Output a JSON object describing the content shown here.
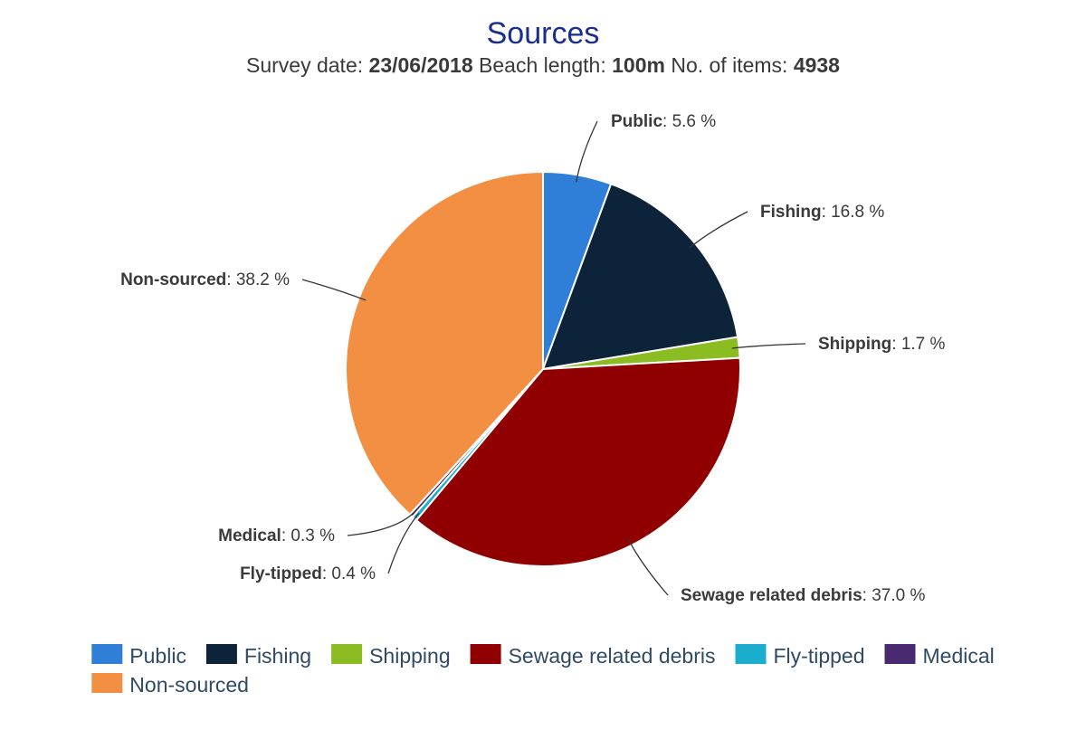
{
  "chart_data": {
    "type": "pie",
    "title": "Sources",
    "subtitle": {
      "survey_date_label": "Survey date: ",
      "survey_date": "23/06/2018",
      "beach_length_label": " Beach length: ",
      "beach_length": "100m",
      "items_label": " No. of items: ",
      "items": "4938"
    },
    "slices": [
      {
        "name": "Public",
        "value": 5.6,
        "label": "5.6 %",
        "color": "#2f7ed8"
      },
      {
        "name": "Fishing",
        "value": 16.8,
        "label": "16.8 %",
        "color": "#0d233a"
      },
      {
        "name": "Shipping",
        "value": 1.7,
        "label": "1.7 %",
        "color": "#8bbc21"
      },
      {
        "name": "Sewage related debris",
        "value": 37.0,
        "label": "37.0 %",
        "color": "#910000"
      },
      {
        "name": "Fly-tipped",
        "value": 0.4,
        "label": "0.4 %",
        "color": "#1aadce"
      },
      {
        "name": "Medical",
        "value": 0.3,
        "label": "0.3 %",
        "color": "#492970"
      },
      {
        "name": "Non-sourced",
        "value": 38.2,
        "label": "38.2 %",
        "color": "#f28f43"
      }
    ],
    "legend_position": "bottom"
  }
}
